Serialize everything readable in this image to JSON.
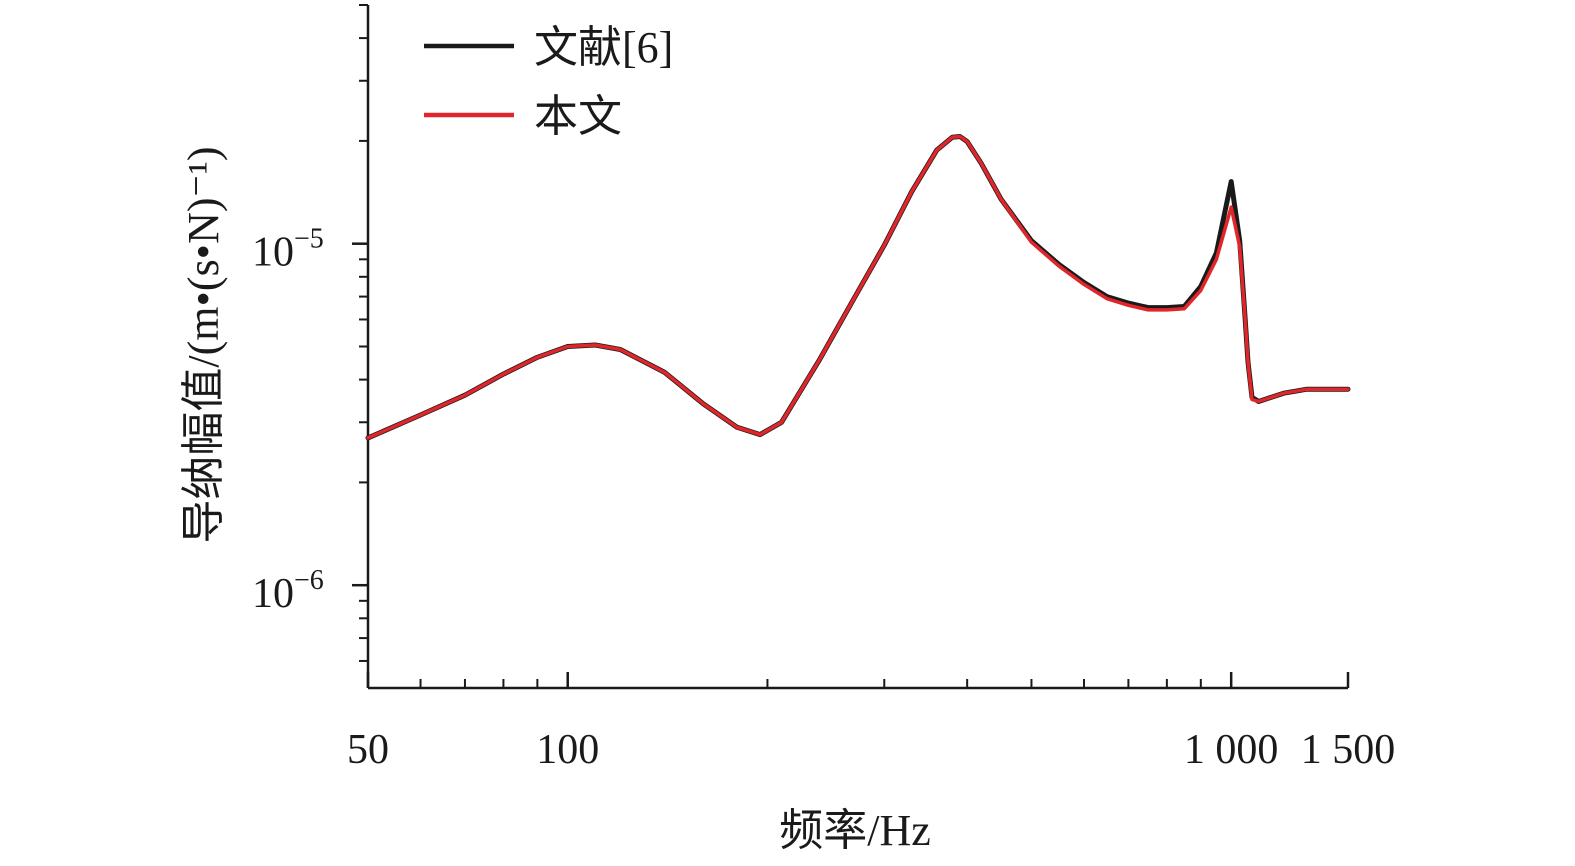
{
  "chart_data": {
    "type": "line",
    "title": "",
    "xlabel": "频率/Hz",
    "ylabel": "导纳幅值/(m•(s•N)⁻¹)",
    "x_scale": "log",
    "y_scale": "log",
    "xlim": [
      50,
      1500
    ],
    "ylim": [
      5e-07,
      5e-05
    ],
    "x_ticks": [
      {
        "value": 50,
        "label": "50"
      },
      {
        "value": 100,
        "label": "100"
      },
      {
        "value": 1000,
        "label": "1 000"
      },
      {
        "value": 1500,
        "label": "1 500"
      }
    ],
    "y_ticks": [
      {
        "value": 1e-06,
        "base": "10",
        "exp": "−6"
      },
      {
        "value": 1e-05,
        "base": "10",
        "exp": "−5"
      }
    ],
    "legend": {
      "position": "top-left"
    },
    "grid": false,
    "series": [
      {
        "name": "文献[6]",
        "color": "#1a1a1a",
        "x": [
          50,
          60,
          70,
          80,
          90,
          100,
          110,
          120,
          140,
          160,
          180,
          195,
          210,
          240,
          270,
          300,
          330,
          360,
          380,
          390,
          400,
          420,
          450,
          500,
          550,
          600,
          650,
          700,
          750,
          800,
          850,
          900,
          950,
          1000,
          1030,
          1050,
          1060,
          1075,
          1100,
          1150,
          1200,
          1250,
          1300,
          1350,
          1400,
          1500
        ],
        "y": [
          2.7e-06,
          3.15e-06,
          3.6e-06,
          4.15e-06,
          4.65e-06,
          5e-06,
          5.05e-06,
          4.9e-06,
          4.2e-06,
          3.4e-06,
          2.9e-06,
          2.76e-06,
          3e-06,
          4.6e-06,
          6.9e-06,
          9.9e-06,
          1.42e-05,
          1.88e-05,
          2.05e-05,
          2.06e-05,
          1.99e-05,
          1.72e-05,
          1.35e-05,
          1.02e-05,
          8.7e-06,
          7.7e-06,
          7e-06,
          6.7e-06,
          6.5e-06,
          6.5e-06,
          6.55e-06,
          7.5e-06,
          9.4e-06,
          1.52e-05,
          1.02e-05,
          6e-06,
          4.5e-06,
          3.55e-06,
          3.45e-06,
          3.55e-06,
          3.65e-06,
          3.7e-06,
          3.75e-06,
          3.75e-06,
          3.75e-06,
          3.75e-06
        ]
      },
      {
        "name": "本文",
        "color": "#e1262b",
        "x": [
          50,
          60,
          70,
          80,
          90,
          100,
          110,
          120,
          140,
          160,
          180,
          195,
          210,
          240,
          270,
          300,
          330,
          360,
          380,
          390,
          400,
          420,
          450,
          500,
          550,
          600,
          650,
          700,
          750,
          800,
          850,
          900,
          950,
          1000,
          1030,
          1050,
          1060,
          1075,
          1100,
          1150,
          1200,
          1250,
          1300,
          1350,
          1400,
          1500
        ],
        "y": [
          2.7e-06,
          3.15e-06,
          3.6e-06,
          4.15e-06,
          4.65e-06,
          5e-06,
          5.05e-06,
          4.9e-06,
          4.2e-06,
          3.4e-06,
          2.9e-06,
          2.76e-06,
          3e-06,
          4.6e-06,
          6.9e-06,
          9.9e-06,
          1.42e-05,
          1.88e-05,
          2.05e-05,
          2.06e-05,
          1.99e-05,
          1.72e-05,
          1.35e-05,
          1.01e-05,
          8.6e-06,
          7.6e-06,
          6.9e-06,
          6.6e-06,
          6.4e-06,
          6.4e-06,
          6.45e-06,
          7.3e-06,
          9e-06,
          1.28e-05,
          9.8e-06,
          6e-06,
          4.5e-06,
          3.5e-06,
          3.45e-06,
          3.55e-06,
          3.65e-06,
          3.7e-06,
          3.75e-06,
          3.75e-06,
          3.75e-06,
          3.75e-06
        ]
      }
    ]
  }
}
